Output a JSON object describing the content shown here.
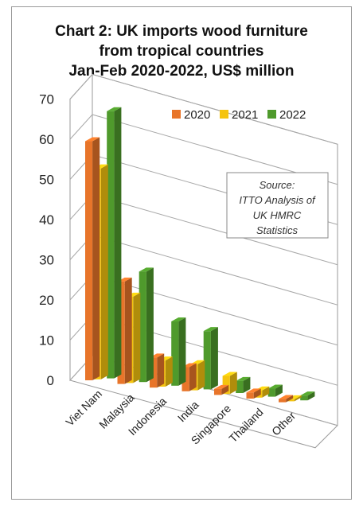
{
  "chart_data": {
    "type": "bar",
    "title_lines": [
      "Chart 2: UK imports wood furniture",
      "from tropical countries",
      "Jan-Feb 2020-2022, US$ million"
    ],
    "categories": [
      "Viet Nam",
      "Malaysia",
      "Indonesia",
      "India",
      "Singapore",
      "Thailand",
      "Other"
    ],
    "series": [
      {
        "name": "2020",
        "values": [
          59.5,
          25.5,
          7.5,
          6.0,
          1.5,
          1.5,
          0.8
        ],
        "color": "#e8752a"
      },
      {
        "name": "2021",
        "values": [
          52.5,
          21.5,
          6.5,
          6.5,
          4.5,
          1.8,
          0.5
        ],
        "color": "#f5c40f"
      },
      {
        "name": "2022",
        "values": [
          66.5,
          27.5,
          16.0,
          14.5,
          3.0,
          2.0,
          1.2
        ],
        "color": "#4f9a2c"
      }
    ],
    "yticks": [
      "70",
      "60",
      "50",
      "40",
      "30",
      "20",
      "10",
      "0"
    ],
    "ylim": [
      0,
      70
    ],
    "legend_position": "top-right",
    "grid": true,
    "annotation_lines": [
      "Source:",
      "ITTO Analysis of",
      "UK HMRC",
      "Statistics"
    ]
  }
}
